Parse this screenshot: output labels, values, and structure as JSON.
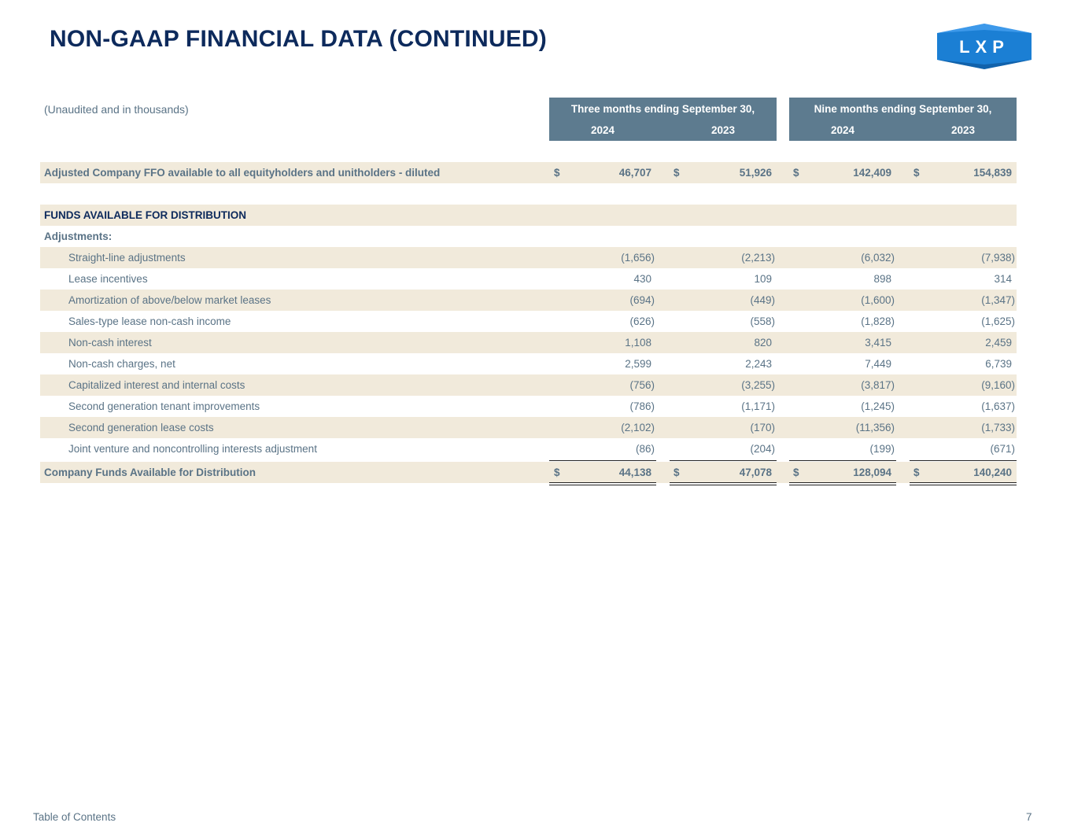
{
  "title": "NON-GAAP FINANCIAL DATA (CONTINUED)",
  "logo_text": "LXP",
  "subtitle": "(Unaudited and in thousands)",
  "headers": {
    "three_months": "Three months ending September 30,",
    "nine_months": "Nine months ending September 30,",
    "years": [
      "2024",
      "2023",
      "2024",
      "2023"
    ]
  },
  "adjusted_ffo": {
    "label": "Adjusted Company FFO available to all equityholders and unitholders - diluted",
    "currency": "$",
    "values": [
      "46,707",
      "51,926",
      "142,409",
      "154,839"
    ]
  },
  "section_heading": "FUNDS AVAILABLE FOR DISTRIBUTION",
  "adjustments_label": "Adjustments:",
  "adjustments": [
    {
      "label": "Straight-line adjustments",
      "values": [
        "(1,656)",
        "(2,213)",
        "(6,032)",
        "(7,938)"
      ]
    },
    {
      "label": "Lease incentives",
      "values": [
        "430",
        "109",
        "898",
        "314"
      ]
    },
    {
      "label": "Amortization of above/below market leases",
      "values": [
        "(694)",
        "(449)",
        "(1,600)",
        "(1,347)"
      ]
    },
    {
      "label": "Sales-type lease non-cash income",
      "values": [
        "(626)",
        "(558)",
        "(1,828)",
        "(1,625)"
      ]
    },
    {
      "label": "Non-cash interest",
      "values": [
        "1,108",
        "820",
        "3,415",
        "2,459"
      ]
    },
    {
      "label": "Non-cash charges, net",
      "values": [
        "2,599",
        "2,243",
        "7,449",
        "6,739"
      ]
    },
    {
      "label": "Capitalized interest and internal costs",
      "values": [
        "(756)",
        "(3,255)",
        "(3,817)",
        "(9,160)"
      ]
    },
    {
      "label": "Second generation tenant improvements",
      "values": [
        "(786)",
        "(1,171)",
        "(1,245)",
        "(1,637)"
      ]
    },
    {
      "label": "Second generation lease costs",
      "values": [
        "(2,102)",
        "(170)",
        "(11,356)",
        "(1,733)"
      ]
    },
    {
      "label": "Joint venture and noncontrolling interests adjustment",
      "values": [
        "(86)",
        "(204)",
        "(199)",
        "(671)"
      ]
    }
  ],
  "total": {
    "label": "Company Funds Available for Distribution",
    "currency": "$",
    "values": [
      "44,138",
      "47,078",
      "128,094",
      "140,240"
    ]
  },
  "footer": {
    "link": "Table of Contents",
    "page_number": "7"
  },
  "colors": {
    "header_bg": "#5d7b8f",
    "row_shade": "#f1eadb",
    "title": "#0d2a5c",
    "text": "#5a7386",
    "logo_blue": "#1b7fd4"
  }
}
